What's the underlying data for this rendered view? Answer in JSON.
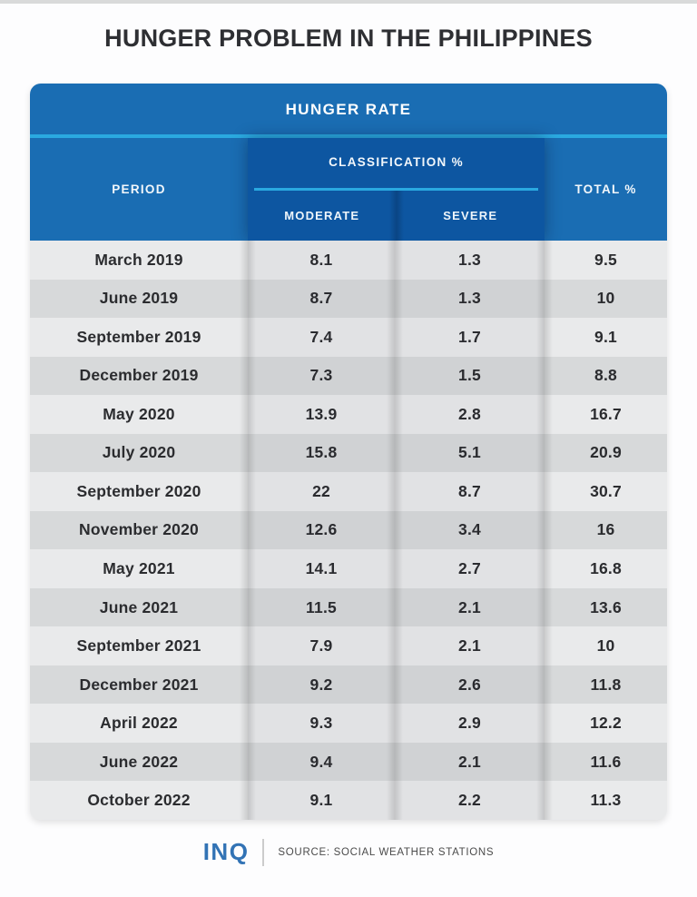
{
  "page": {
    "title": "HUNGER PROBLEM IN THE PHILIPPINES"
  },
  "table": {
    "title": "HUNGER RATE",
    "headers": {
      "period": "PERIOD",
      "classification": "CLASSIFICATION %",
      "moderate": "MODERATE",
      "severe": "SEVERE",
      "total": "TOTAL %"
    },
    "rows": [
      {
        "period": "March 2019",
        "moderate": "8.1",
        "severe": "1.3",
        "total": "9.5"
      },
      {
        "period": "June 2019",
        "moderate": "8.7",
        "severe": "1.3",
        "total": "10"
      },
      {
        "period": "September 2019",
        "moderate": "7.4",
        "severe": "1.7",
        "total": "9.1"
      },
      {
        "period": "December 2019",
        "moderate": "7.3",
        "severe": "1.5",
        "total": "8.8"
      },
      {
        "period": "May 2020",
        "moderate": "13.9",
        "severe": "2.8",
        "total": "16.7"
      },
      {
        "period": "July 2020",
        "moderate": "15.8",
        "severe": "5.1",
        "total": "20.9"
      },
      {
        "period": "September 2020",
        "moderate": "22",
        "severe": "8.7",
        "total": "30.7"
      },
      {
        "period": "November 2020",
        "moderate": "12.6",
        "severe": "3.4",
        "total": "16"
      },
      {
        "period": "May 2021",
        "moderate": "14.1",
        "severe": "2.7",
        "total": "16.8"
      },
      {
        "period": "June 2021",
        "moderate": "11.5",
        "severe": "2.1",
        "total": "13.6"
      },
      {
        "period": "September 2021",
        "moderate": "7.9",
        "severe": "2.1",
        "total": "10"
      },
      {
        "period": "December 2021",
        "moderate": "9.2",
        "severe": "2.6",
        "total": "11.8"
      },
      {
        "period": "April 2022",
        "moderate": "9.3",
        "severe": "2.9",
        "total": "12.2"
      },
      {
        "period": "June 2022",
        "moderate": "9.4",
        "severe": "2.1",
        "total": "11.6"
      },
      {
        "period": "October 2022",
        "moderate": "9.1",
        "severe": "2.2",
        "total": "11.3"
      }
    ]
  },
  "footer": {
    "logo": "INQ",
    "source": "SOURCE: SOCIAL WEATHER STATIONS"
  },
  "colors": {
    "header_blue": "#1a6db3",
    "classification_panel_blue": "#0d56a1",
    "cyan_accent": "#2aa9e0",
    "row_light": "#e9eaeb",
    "row_dark": "#d7d9da",
    "title_text": "#2e2f33",
    "logo_blue": "#3273b5"
  },
  "chart_data": {
    "type": "table",
    "title": "HUNGER RATE",
    "subtitle": "HUNGER PROBLEM IN THE PHILIPPINES",
    "columns": [
      "PERIOD",
      "MODERATE %",
      "SEVERE %",
      "TOTAL %"
    ],
    "rows": [
      [
        "March 2019",
        8.1,
        1.3,
        9.5
      ],
      [
        "June 2019",
        8.7,
        1.3,
        10
      ],
      [
        "September 2019",
        7.4,
        1.7,
        9.1
      ],
      [
        "December 2019",
        7.3,
        1.5,
        8.8
      ],
      [
        "May 2020",
        13.9,
        2.8,
        16.7
      ],
      [
        "July 2020",
        15.8,
        5.1,
        20.9
      ],
      [
        "September 2020",
        22,
        8.7,
        30.7
      ],
      [
        "November 2020",
        12.6,
        3.4,
        16
      ],
      [
        "May 2021",
        14.1,
        2.7,
        16.8
      ],
      [
        "June 2021",
        11.5,
        2.1,
        13.6
      ],
      [
        "September 2021",
        7.9,
        2.1,
        10
      ],
      [
        "December 2021",
        9.2,
        2.6,
        11.8
      ],
      [
        "April 2022",
        9.3,
        2.9,
        12.2
      ],
      [
        "June 2022",
        9.4,
        2.1,
        11.6
      ],
      [
        "October 2022",
        9.1,
        2.2,
        11.3
      ]
    ],
    "source": "SOCIAL WEATHER STATIONS"
  }
}
